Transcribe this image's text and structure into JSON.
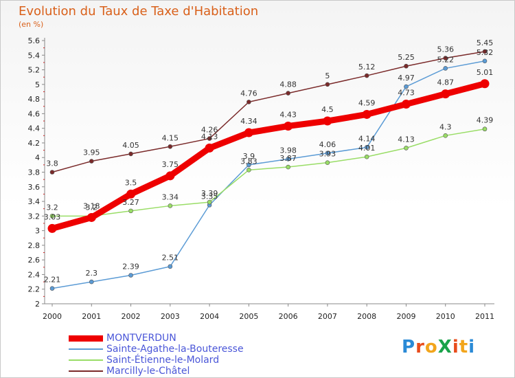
{
  "header": {
    "title": "Evolution du Taux de Taxe d'Habitation",
    "subtitle": "(en %)"
  },
  "logo": {
    "text": "ProXiti",
    "letters": [
      "P",
      "r",
      "o",
      "X",
      "i",
      "t",
      "i"
    ],
    "colors": [
      "#2a8ad6",
      "#e84c1c",
      "#f2a51c",
      "#1aa34a",
      "#e84c1c",
      "#f2a51c",
      "#2a8ad6"
    ]
  },
  "chart_data": {
    "type": "line",
    "title": "Evolution du Taux de Taxe d'Habitation",
    "subtitle": "(en %)",
    "xlabel": "",
    "ylabel": "",
    "ylim": [
      2,
      5.6
    ],
    "yticks": [
      "2",
      "2.2",
      "2.4",
      "2.6",
      "2.8",
      "3",
      "3.2",
      "3.4",
      "3.6",
      "3.8",
      "4",
      "4.2",
      "4.4",
      "4.6",
      "4.8",
      "5",
      "5.2",
      "5.4",
      "5.6"
    ],
    "x": [
      "2000",
      "2001",
      "2002",
      "2003",
      "2004",
      "2005",
      "2006",
      "2007",
      "2008",
      "2009",
      "2010",
      "2011"
    ],
    "grid": false,
    "legend_position": "bottom-left",
    "series": [
      {
        "name": "MONTVERDUN",
        "color": "#ee0000",
        "width": 9,
        "marker": 6.5,
        "values": [
          3.03,
          3.18,
          3.5,
          3.75,
          4.13,
          4.34,
          4.43,
          4.5,
          4.59,
          4.73,
          4.87,
          5.01
        ],
        "labels": [
          "3.03",
          "3.18",
          "3.5",
          "3.75",
          "4.13",
          "4.34",
          "4.43",
          "4.5",
          "4.59",
          "4.73",
          "4.87",
          "5.01"
        ]
      },
      {
        "name": "Sainte-Agathe-la-Bouteresse",
        "color": "#5b9bd5",
        "width": 1.5,
        "marker": 3,
        "values": [
          2.21,
          2.3,
          2.39,
          2.51,
          3.35,
          3.9,
          3.98,
          4.06,
          4.14,
          4.97,
          5.22,
          5.32
        ],
        "labels": [
          "2.21",
          "2.3",
          "2.39",
          "2.51",
          "3.35",
          "3.9",
          "3.98",
          "4.06",
          "4.14",
          "4.97",
          "5.22",
          "5.32"
        ]
      },
      {
        "name": "Saint-Étienne-le-Molard",
        "color": "#99dd66",
        "width": 1.5,
        "marker": 3,
        "values": [
          3.2,
          3.2,
          3.27,
          3.34,
          3.39,
          3.83,
          3.87,
          3.93,
          4.01,
          4.13,
          4.3,
          4.39
        ],
        "labels": [
          "3.2",
          "3.2",
          "3.27",
          "3.34",
          "3.39",
          "3.83",
          "3.87",
          "3.93",
          "4.01",
          "4.13",
          "4.3",
          "4.39"
        ]
      },
      {
        "name": "Marcilly-le-Châtel",
        "color": "#7a2a2a",
        "width": 1.5,
        "marker": 3,
        "values": [
          3.8,
          3.95,
          4.05,
          4.15,
          4.26,
          4.76,
          4.88,
          5.0,
          5.12,
          5.25,
          5.36,
          5.45
        ],
        "labels": [
          "3.8",
          "3.95",
          "4.05",
          "4.15",
          "4.26",
          "4.76",
          "4.88",
          "5",
          "5.12",
          "5.25",
          "5.36",
          "5.45"
        ]
      }
    ]
  }
}
